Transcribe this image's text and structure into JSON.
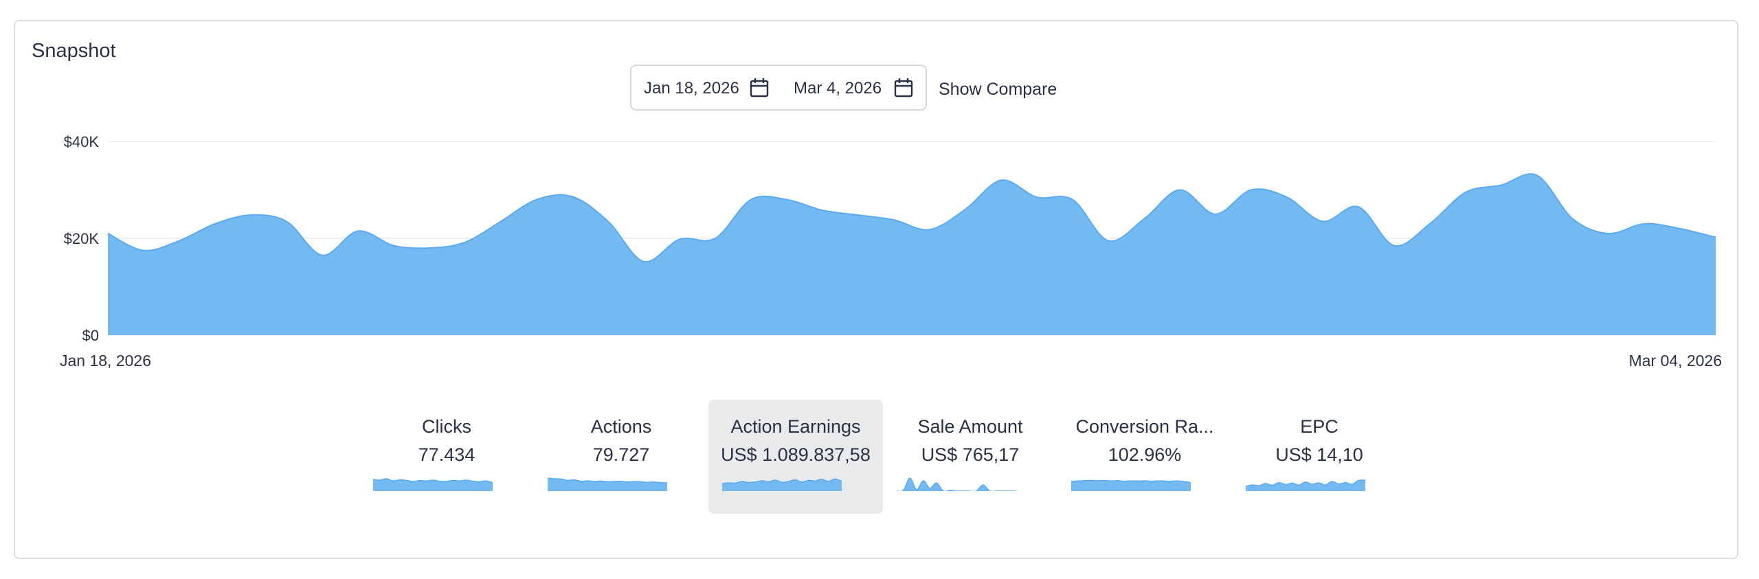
{
  "widget": {
    "title": "Snapshot"
  },
  "date_range": {
    "start": "Jan 18, 2026",
    "end": "Mar 4, 2026",
    "compare_label": "Show Compare"
  },
  "icons": {
    "calendar": "calendar-icon"
  },
  "colors": {
    "area_fill": "#74baf2",
    "area_stroke": "#5aaaef",
    "grid": "#ececef",
    "active_tab": "#e9eaec",
    "text": "#2a3145"
  },
  "chart_data": {
    "type": "area",
    "title": "",
    "xlabel": "",
    "ylabel": "",
    "ylim": [
      0,
      40000
    ],
    "yticks": [
      0,
      20000,
      40000
    ],
    "ytick_labels": [
      "$0",
      "$20K",
      "$40K"
    ],
    "xtick_labels": [
      "Jan 18, 2026",
      "Mar 04, 2026"
    ],
    "grid": true,
    "x": [
      "2026-01-18",
      "2026-01-19",
      "2026-01-20",
      "2026-01-21",
      "2026-01-22",
      "2026-01-23",
      "2026-01-24",
      "2026-01-25",
      "2026-01-26",
      "2026-01-27",
      "2026-01-28",
      "2026-01-29",
      "2026-01-30",
      "2026-01-31",
      "2026-02-01",
      "2026-02-02",
      "2026-02-03",
      "2026-02-04",
      "2026-02-05",
      "2026-02-06",
      "2026-02-07",
      "2026-02-08",
      "2026-02-09",
      "2026-02-10",
      "2026-02-11",
      "2026-02-12",
      "2026-02-13",
      "2026-02-14",
      "2026-02-15",
      "2026-02-16",
      "2026-02-17",
      "2026-02-18",
      "2026-02-19",
      "2026-02-20",
      "2026-02-21",
      "2026-02-22",
      "2026-02-23",
      "2026-02-24",
      "2026-02-25",
      "2026-02-26",
      "2026-02-27",
      "2026-02-28",
      "2026-03-01",
      "2026-03-02",
      "2026-03-03",
      "2026-03-04"
    ],
    "series": [
      {
        "values": [
          21000,
          17500,
          19500,
          23000,
          24800,
          23500,
          16500,
          21500,
          18500,
          18000,
          19200,
          23500,
          28000,
          28600,
          23500,
          15200,
          19800,
          20000,
          28000,
          28000,
          25800,
          24800,
          23800,
          21800,
          26000,
          32000,
          28500,
          28000,
          19500,
          24000,
          30000,
          25000,
          30000,
          28500,
          23500,
          26500,
          18500,
          23000,
          29500,
          31000,
          33000,
          24000,
          21000,
          23000,
          22000,
          20200
        ]
      }
    ]
  },
  "metrics": [
    {
      "label": "Clicks",
      "value": "77.434",
      "active": false,
      "spark": [
        0.85,
        0.8,
        0.9,
        0.75,
        0.82,
        0.78,
        0.7,
        0.76,
        0.74,
        0.8,
        0.72,
        0.7,
        0.78,
        0.74,
        0.8,
        0.72,
        0.68,
        0.74,
        0.62
      ]
    },
    {
      "label": "Actions",
      "value": "79.727",
      "active": false,
      "spark": [
        0.95,
        0.9,
        0.88,
        0.78,
        0.82,
        0.72,
        0.75,
        0.7,
        0.74,
        0.68,
        0.7,
        0.72,
        0.66,
        0.7,
        0.68,
        0.64,
        0.66,
        0.62,
        0.6
      ]
    },
    {
      "label": "Action Earnings",
      "value": "US$ 1.089.837,58",
      "active": true,
      "spark": [
        0.55,
        0.6,
        0.58,
        0.7,
        0.62,
        0.66,
        0.75,
        0.68,
        0.8,
        0.64,
        0.7,
        0.82,
        0.66,
        0.78,
        0.74,
        0.86,
        0.7,
        0.88,
        0.72
      ]
    },
    {
      "label": "Sale Amount",
      "value": "US$ 765,17",
      "active": false,
      "spark": [
        0.0,
        0.05,
        0.95,
        0.1,
        0.75,
        0.2,
        0.6,
        0.0,
        0.05,
        0.0,
        0.0,
        0.0,
        0.0,
        0.45,
        0.0,
        0.0,
        0.0,
        0.0,
        0.0
      ]
    },
    {
      "label": "Conversion Ra...",
      "value": "102.96%",
      "active": false,
      "spark": [
        0.72,
        0.74,
        0.76,
        0.78,
        0.75,
        0.77,
        0.74,
        0.76,
        0.72,
        0.74,
        0.73,
        0.75,
        0.72,
        0.74,
        0.73,
        0.72,
        0.74,
        0.7,
        0.62
      ]
    },
    {
      "label": "EPC",
      "value": "US$ 14,10",
      "active": false,
      "spark": [
        0.35,
        0.45,
        0.4,
        0.55,
        0.42,
        0.62,
        0.48,
        0.58,
        0.44,
        0.66,
        0.5,
        0.6,
        0.45,
        0.7,
        0.52,
        0.62,
        0.5,
        0.78,
        0.8
      ]
    }
  ]
}
